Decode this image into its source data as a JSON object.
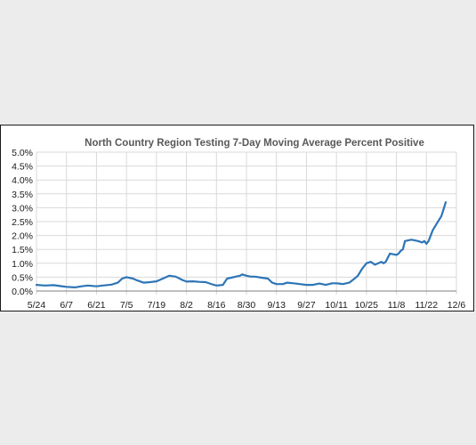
{
  "colors": {
    "background": "#ececec",
    "plot_bg": "#ffffff",
    "series": "#2e75b6",
    "grid": "#d9d9d9"
  },
  "chart_data": {
    "type": "line",
    "title": "North Country Region Testing 7-Day Moving Average Percent Positive",
    "xlabel": "",
    "ylabel": "",
    "x_tick_labels": [
      "5/24",
      "6/7",
      "6/21",
      "7/5",
      "7/19",
      "8/2",
      "8/16",
      "8/30",
      "9/13",
      "9/27",
      "10/11",
      "10/25",
      "11/8",
      "11/22",
      "12/6"
    ],
    "y_tick_labels": [
      "0.0%",
      "0.5%",
      "1.0%",
      "1.5%",
      "2.0%",
      "2.5%",
      "3.0%",
      "3.5%",
      "4.0%",
      "4.5%",
      "5.0%"
    ],
    "ylim": [
      0,
      5
    ],
    "grid": true,
    "legend": "none",
    "series": [
      {
        "x": [
          "5/24",
          "5/28",
          "6/1",
          "6/4",
          "6/7",
          "6/11",
          "6/14",
          "6/17",
          "6/21",
          "6/24",
          "6/28",
          "7/1",
          "7/3",
          "7/5",
          "7/8",
          "7/10",
          "7/13",
          "7/16",
          "7/19",
          "7/22",
          "7/25",
          "7/28",
          "7/31",
          "8/2",
          "8/5",
          "8/8",
          "8/11",
          "8/14",
          "8/16",
          "8/19",
          "8/21",
          "8/23",
          "8/25",
          "8/27",
          "8/28",
          "8/30",
          "9/1",
          "9/3",
          "9/6",
          "9/9",
          "9/11",
          "9/13",
          "9/16",
          "9/18",
          "9/21",
          "9/24",
          "9/27",
          "9/30",
          "10/3",
          "10/6",
          "10/9",
          "10/11",
          "10/14",
          "10/17",
          "10/19",
          "10/21",
          "10/23",
          "10/25",
          "10/27",
          "10/29",
          "11/1",
          "11/2",
          "11/3",
          "11/5",
          "11/8",
          "11/9",
          "11/10",
          "11/11",
          "11/12",
          "11/15",
          "11/18",
          "11/20",
          "11/21",
          "11/22",
          "11/23",
          "11/25",
          "11/27",
          "11/29",
          "11/30",
          "12/1"
        ],
        "y": [
          0.22,
          0.2,
          0.21,
          0.18,
          0.15,
          0.13,
          0.17,
          0.2,
          0.17,
          0.2,
          0.23,
          0.3,
          0.45,
          0.5,
          0.45,
          0.38,
          0.3,
          0.32,
          0.35,
          0.45,
          0.55,
          0.52,
          0.4,
          0.34,
          0.35,
          0.33,
          0.32,
          0.24,
          0.2,
          0.22,
          0.45,
          0.48,
          0.52,
          0.55,
          0.6,
          0.55,
          0.52,
          0.52,
          0.48,
          0.45,
          0.3,
          0.25,
          0.25,
          0.3,
          0.28,
          0.25,
          0.22,
          0.22,
          0.27,
          0.22,
          0.28,
          0.28,
          0.25,
          0.3,
          0.42,
          0.55,
          0.8,
          1.0,
          1.05,
          0.95,
          1.05,
          1.0,
          1.05,
          1.35,
          1.3,
          1.35,
          1.45,
          1.5,
          1.8,
          1.85,
          1.8,
          1.75,
          1.8,
          1.7,
          1.8,
          2.2,
          2.45,
          2.7,
          2.95,
          3.2
        ]
      }
    ]
  }
}
